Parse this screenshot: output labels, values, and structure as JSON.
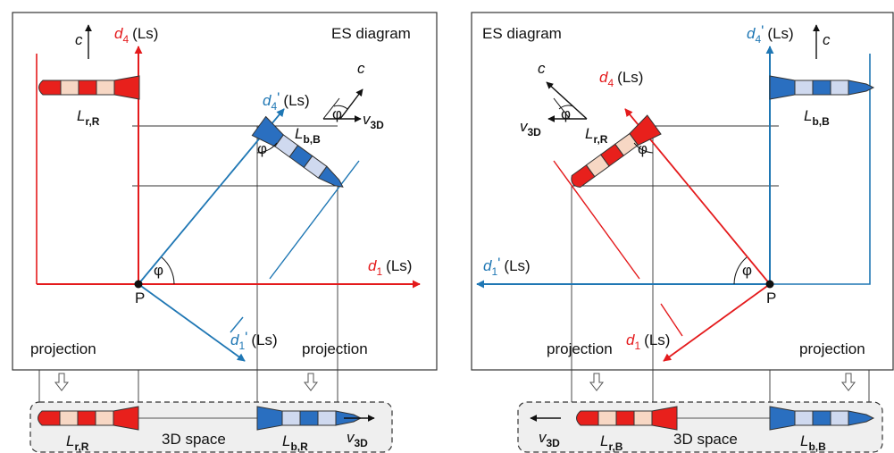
{
  "colors": {
    "red": "#e41a1c",
    "blue": "#1f77b4",
    "rocket_red_dark": "#e8201c",
    "rocket_red_light": "#f7d7c4",
    "rocket_blue_dark": "#2a6fc0",
    "rocket_blue_light": "#cfd9ef",
    "space_box": "#efefef"
  },
  "left": {
    "title": "ES diagram",
    "axis_d4": {
      "sym": "d",
      "sub": "4",
      "unit": "(Ls)"
    },
    "axis_d1": {
      "sym": "d",
      "sub": "1",
      "unit": "(Ls)"
    },
    "axis_d4p": {
      "sym": "d",
      "sub": "4",
      "prime": "'",
      "unit": "(Ls)"
    },
    "axis_d1p": {
      "sym": "d",
      "sub": "1",
      "prime": "'",
      "unit": "(Ls)"
    },
    "c_label": "c",
    "origin_label": "P",
    "angle_label": "φ",
    "velocity": {
      "sym": "v",
      "sub": "3D"
    },
    "rocket_red_label": {
      "sym": "L",
      "sub": "r,R"
    },
    "rocket_blue_label": {
      "sym": "L",
      "sub": "b,B"
    },
    "projection_left": "projection",
    "projection_right": "projection",
    "space": {
      "label": "3D space",
      "red_label": {
        "sym": "L",
        "sub": "r,R"
      },
      "blue_label": {
        "sym": "L",
        "sub": "b,R"
      },
      "velocity": {
        "sym": "v",
        "sub": "3D"
      }
    }
  },
  "right": {
    "title": "ES diagram",
    "axis_d4": {
      "sym": "d",
      "sub": "4",
      "unit": "(Ls)"
    },
    "axis_d1": {
      "sym": "d",
      "sub": "1",
      "unit": "(Ls)"
    },
    "axis_d4p": {
      "sym": "d",
      "sub": "4",
      "prime": "'",
      "unit": "(Ls)"
    },
    "axis_d1p": {
      "sym": "d",
      "sub": "1",
      "prime": "'",
      "unit": "(Ls)"
    },
    "c_label": "c",
    "origin_label": "P",
    "angle_label": "φ",
    "velocity": {
      "sym": "v",
      "sub": "3D"
    },
    "rocket_red_label": {
      "sym": "L",
      "sub": "r,R"
    },
    "rocket_blue_label": {
      "sym": "L",
      "sub": "b,B"
    },
    "projection_left": "projection",
    "projection_right": "projection",
    "space": {
      "label": "3D space",
      "red_label": {
        "sym": "L",
        "sub": "r,B"
      },
      "blue_label": {
        "sym": "L",
        "sub": "b,B"
      },
      "velocity": {
        "sym": "v",
        "sub": "3D"
      }
    }
  }
}
